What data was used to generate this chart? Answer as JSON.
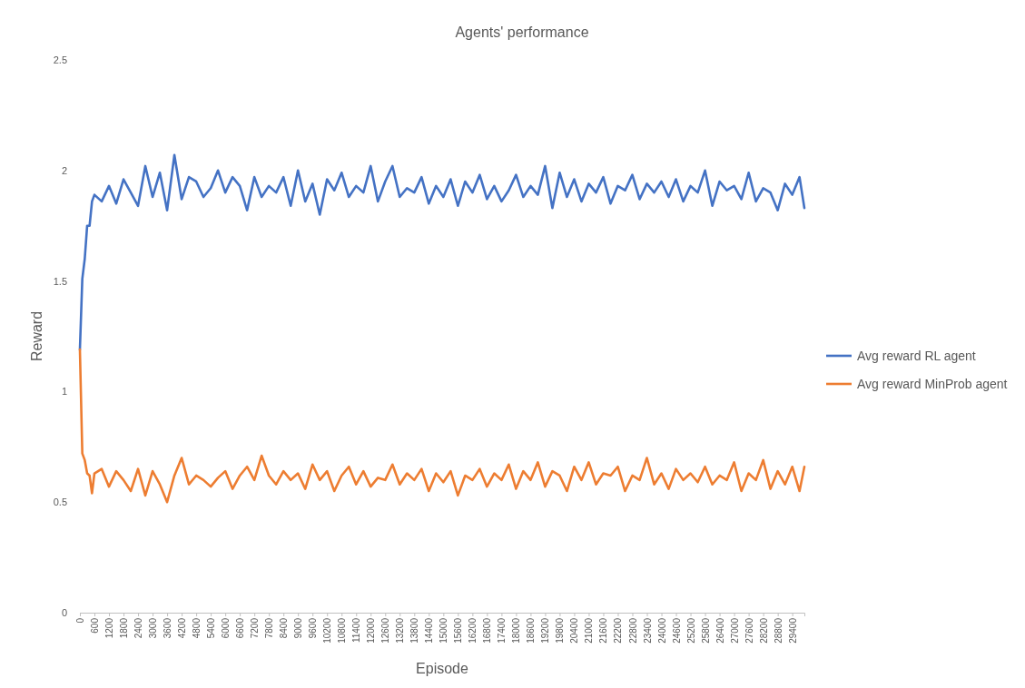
{
  "chart_data": {
    "type": "line",
    "title": "Agents' performance",
    "xlabel": "Episode",
    "ylabel": "Reward",
    "x": [
      0,
      100,
      200,
      300,
      400,
      500,
      600,
      900,
      1200,
      1500,
      1800,
      2100,
      2400,
      2700,
      3000,
      3300,
      3600,
      3900,
      4200,
      4500,
      4800,
      5100,
      5400,
      5700,
      6000,
      6300,
      6600,
      6900,
      7200,
      7500,
      7800,
      8100,
      8400,
      8700,
      9000,
      9300,
      9600,
      9900,
      10200,
      10500,
      10800,
      11100,
      11400,
      11700,
      12000,
      12300,
      12600,
      12900,
      13200,
      13500,
      13800,
      14100,
      14400,
      14700,
      15000,
      15300,
      15600,
      15900,
      16200,
      16500,
      16800,
      17100,
      17400,
      17700,
      18000,
      18300,
      18600,
      18900,
      19200,
      19500,
      19800,
      20100,
      20400,
      20700,
      21000,
      21300,
      21600,
      21900,
      22200,
      22500,
      22800,
      23100,
      23400,
      23700,
      24000,
      24300,
      24600,
      24900,
      25200,
      25500,
      25800,
      26100,
      26400,
      26700,
      27000,
      27300,
      27600,
      27900,
      28200,
      28500,
      28800,
      29100,
      29400,
      29700,
      29900
    ],
    "series": [
      {
        "name": "Avg reward RL agent",
        "color": "#4472c4",
        "values": [
          1.19,
          1.51,
          1.6,
          1.75,
          1.75,
          1.86,
          1.89,
          1.86,
          1.93,
          1.85,
          1.96,
          1.9,
          1.84,
          2.02,
          1.88,
          1.99,
          1.82,
          2.07,
          1.87,
          1.97,
          1.95,
          1.88,
          1.92,
          2.0,
          1.9,
          1.97,
          1.93,
          1.82,
          1.97,
          1.88,
          1.93,
          1.9,
          1.97,
          1.84,
          2.0,
          1.86,
          1.94,
          1.8,
          1.96,
          1.91,
          1.99,
          1.88,
          1.93,
          1.9,
          2.02,
          1.86,
          1.95,
          2.02,
          1.88,
          1.92,
          1.9,
          1.97,
          1.85,
          1.93,
          1.88,
          1.96,
          1.84,
          1.95,
          1.9,
          1.98,
          1.87,
          1.93,
          1.86,
          1.91,
          1.98,
          1.88,
          1.93,
          1.89,
          2.02,
          1.83,
          1.99,
          1.88,
          1.96,
          1.86,
          1.94,
          1.9,
          1.97,
          1.85,
          1.93,
          1.91,
          1.98,
          1.87,
          1.94,
          1.9,
          1.95,
          1.88,
          1.96,
          1.86,
          1.93,
          1.9,
          2.0,
          1.84,
          1.95,
          1.91,
          1.93,
          1.87,
          1.99,
          1.86,
          1.92,
          1.9,
          1.82,
          1.94,
          1.89,
          1.97,
          1.83
        ]
      },
      {
        "name": "Avg reward MinProb agent",
        "color": "#ed7d31",
        "values": [
          1.19,
          0.72,
          0.69,
          0.63,
          0.62,
          0.54,
          0.63,
          0.65,
          0.57,
          0.64,
          0.6,
          0.55,
          0.65,
          0.53,
          0.64,
          0.58,
          0.5,
          0.62,
          0.7,
          0.58,
          0.62,
          0.6,
          0.57,
          0.61,
          0.64,
          0.56,
          0.62,
          0.66,
          0.6,
          0.71,
          0.62,
          0.58,
          0.64,
          0.6,
          0.63,
          0.56,
          0.67,
          0.6,
          0.64,
          0.55,
          0.62,
          0.66,
          0.58,
          0.64,
          0.57,
          0.61,
          0.6,
          0.67,
          0.58,
          0.63,
          0.6,
          0.65,
          0.55,
          0.63,
          0.59,
          0.64,
          0.53,
          0.62,
          0.6,
          0.65,
          0.57,
          0.63,
          0.6,
          0.67,
          0.56,
          0.64,
          0.6,
          0.68,
          0.57,
          0.64,
          0.62,
          0.55,
          0.66,
          0.6,
          0.68,
          0.58,
          0.63,
          0.62,
          0.66,
          0.55,
          0.62,
          0.6,
          0.7,
          0.58,
          0.63,
          0.56,
          0.65,
          0.6,
          0.63,
          0.59,
          0.66,
          0.58,
          0.62,
          0.6,
          0.68,
          0.55,
          0.63,
          0.6,
          0.69,
          0.56,
          0.64,
          0.58,
          0.66,
          0.55,
          0.66
        ]
      }
    ],
    "xlim": [
      0,
      29900
    ],
    "xticks": [
      0,
      600,
      1200,
      1800,
      2400,
      3000,
      3600,
      4200,
      4800,
      5400,
      6000,
      6600,
      7200,
      7800,
      8400,
      9000,
      9600,
      10200,
      10800,
      11400,
      12000,
      12600,
      13200,
      13800,
      14400,
      15000,
      15600,
      16200,
      16800,
      17400,
      18000,
      18600,
      19200,
      19800,
      20400,
      21000,
      21600,
      22200,
      22800,
      23400,
      24000,
      24600,
      25200,
      25800,
      26400,
      27000,
      27600,
      28200,
      28800,
      29400
    ],
    "ylim": [
      0,
      2.5
    ],
    "yticks": [
      0,
      0.5,
      1,
      1.5,
      2,
      2.5
    ],
    "grid": false,
    "legend": "right",
    "marker": "none",
    "line_style": "solid"
  }
}
